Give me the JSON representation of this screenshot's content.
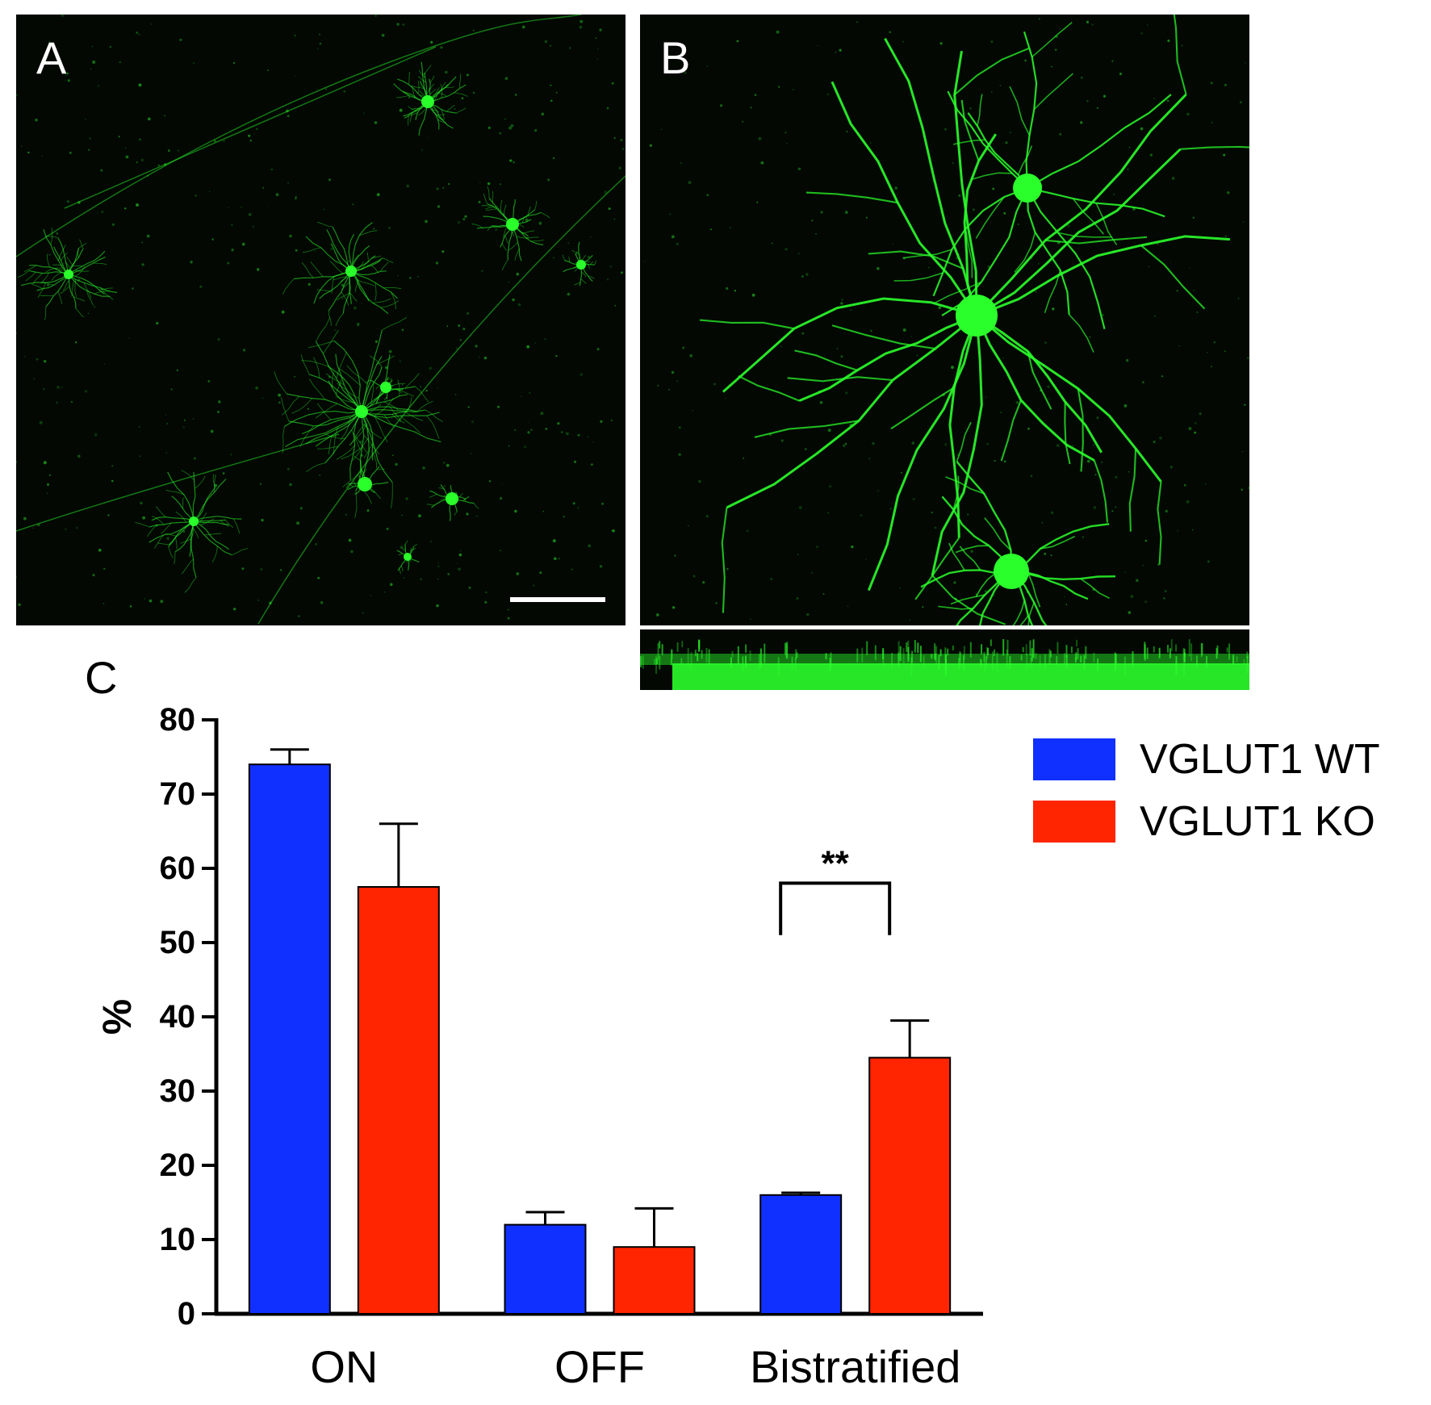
{
  "panels": {
    "a": {
      "label": "A",
      "scale_bar": true
    },
    "b": {
      "label": "B"
    },
    "c": {
      "label": "C"
    }
  },
  "colors": {
    "micrograph_background": "#030803",
    "fluorescence": "#2bff2b",
    "wt": "#1030ff",
    "ko": "#ff2500"
  },
  "chart_data": {
    "type": "bar",
    "categories": [
      "ON",
      "OFF",
      "Bistratified"
    ],
    "series": [
      {
        "name": "VGLUT1 WT",
        "color": "#1030ff",
        "values": [
          74,
          12,
          16
        ],
        "errors": [
          2,
          1.7,
          0.3
        ]
      },
      {
        "name": "VGLUT1 KO",
        "color": "#ff2500",
        "values": [
          57.5,
          9,
          34.5
        ],
        "errors": [
          8.5,
          5.2,
          5
        ]
      }
    ],
    "ylabel": "%",
    "xlabel": "",
    "ylim": [
      0,
      80
    ],
    "yticks": [
      0,
      10,
      20,
      30,
      40,
      50,
      60,
      70,
      80
    ],
    "grid": false,
    "legend_position": "right",
    "annotations": [
      {
        "text": "**",
        "category": "Bistratified",
        "between": [
          "VGLUT1 WT",
          "VGLUT1 KO"
        ]
      }
    ]
  }
}
